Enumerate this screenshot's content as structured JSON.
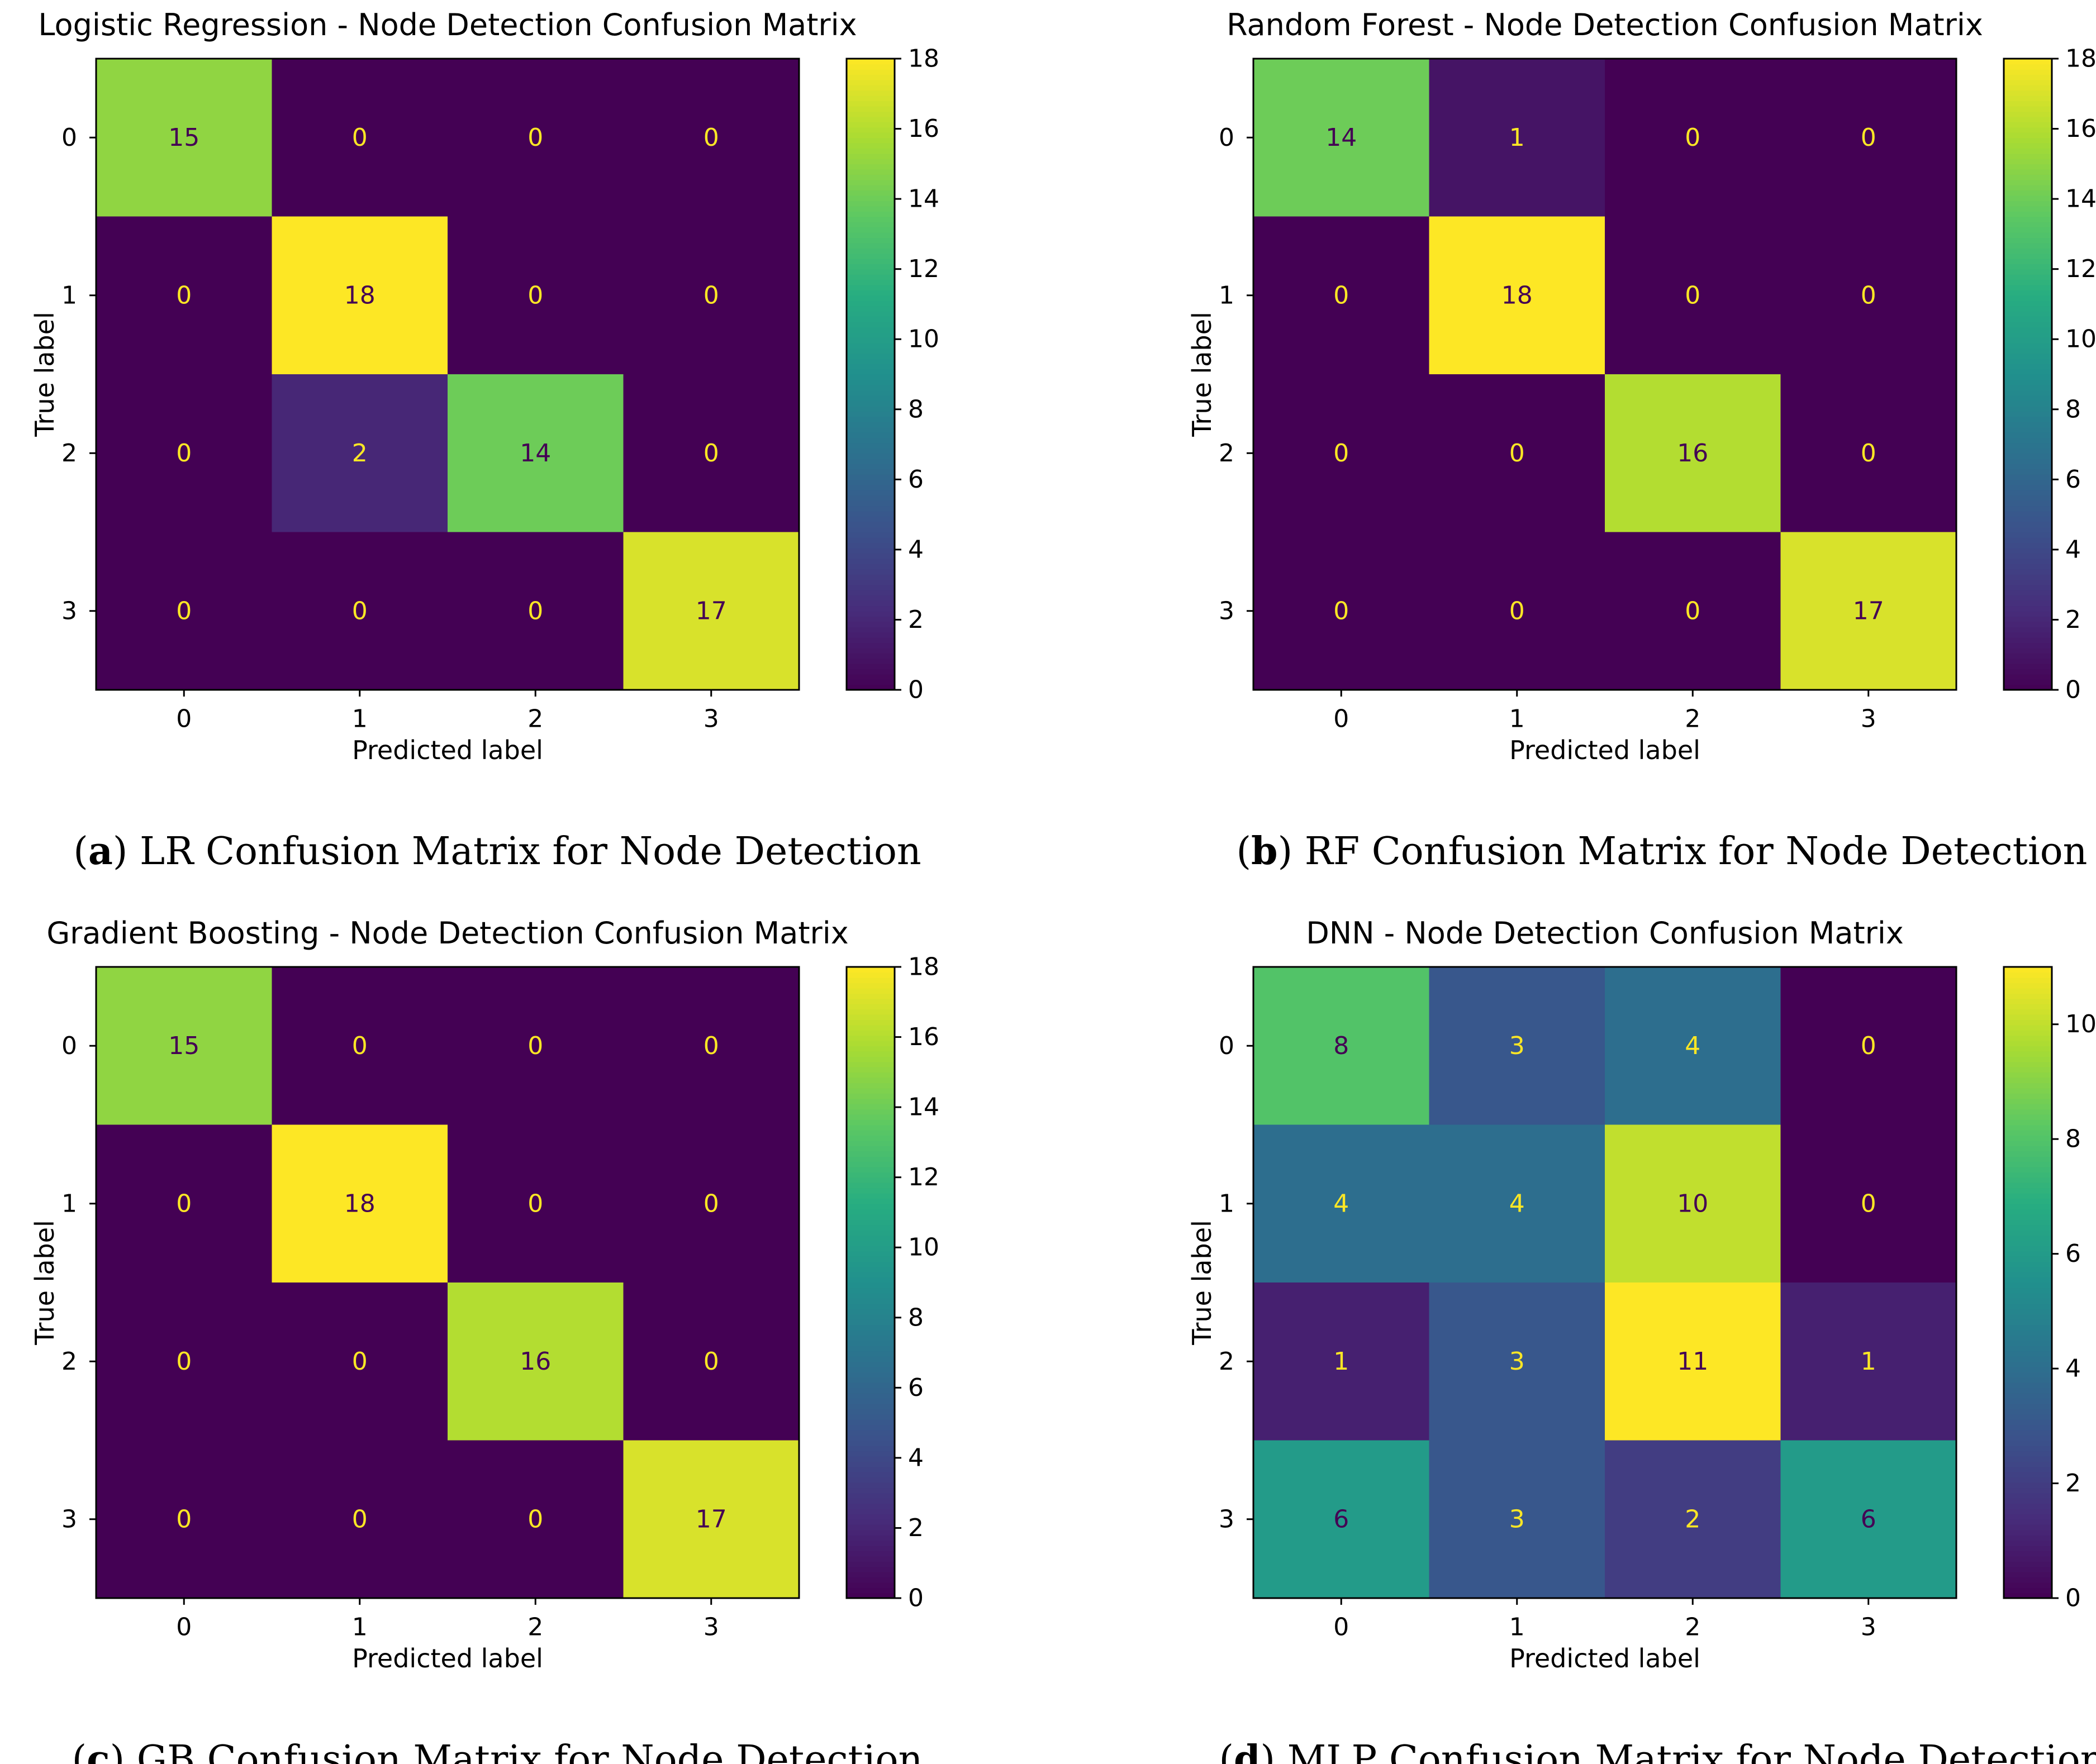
{
  "chart_data": [
    {
      "type": "heatmap",
      "title": "Logistic Regression - Node Detection Confusion Matrix",
      "xlabel": "Predicted label",
      "ylabel": "True label",
      "x_categories": [
        "0",
        "1",
        "2",
        "3"
      ],
      "y_categories": [
        "0",
        "1",
        "2",
        "3"
      ],
      "values": [
        [
          15,
          0,
          0,
          0
        ],
        [
          0,
          18,
          0,
          0
        ],
        [
          0,
          2,
          14,
          0
        ],
        [
          0,
          0,
          0,
          17
        ]
      ],
      "vmin": 0,
      "vmax": 18,
      "colorbar_ticks": [
        0,
        2,
        4,
        6,
        8,
        10,
        12,
        14,
        16,
        18
      ],
      "colormap": "viridis",
      "caption_letter": "a",
      "caption_text": "LR Confusion Matrix for Node Detection"
    },
    {
      "type": "heatmap",
      "title": "Random Forest - Node Detection Confusion Matrix",
      "xlabel": "Predicted label",
      "ylabel": "True label",
      "x_categories": [
        "0",
        "1",
        "2",
        "3"
      ],
      "y_categories": [
        "0",
        "1",
        "2",
        "3"
      ],
      "values": [
        [
          14,
          1,
          0,
          0
        ],
        [
          0,
          18,
          0,
          0
        ],
        [
          0,
          0,
          16,
          0
        ],
        [
          0,
          0,
          0,
          17
        ]
      ],
      "vmin": 0,
      "vmax": 18,
      "colorbar_ticks": [
        0,
        2,
        4,
        6,
        8,
        10,
        12,
        14,
        16,
        18
      ],
      "colormap": "viridis",
      "caption_letter": "b",
      "caption_text": "RF Confusion Matrix for Node Detection"
    },
    {
      "type": "heatmap",
      "title": "Gradient Boosting - Node Detection Confusion Matrix",
      "xlabel": "Predicted label",
      "ylabel": "True label",
      "x_categories": [
        "0",
        "1",
        "2",
        "3"
      ],
      "y_categories": [
        "0",
        "1",
        "2",
        "3"
      ],
      "values": [
        [
          15,
          0,
          0,
          0
        ],
        [
          0,
          18,
          0,
          0
        ],
        [
          0,
          0,
          16,
          0
        ],
        [
          0,
          0,
          0,
          17
        ]
      ],
      "vmin": 0,
      "vmax": 18,
      "colorbar_ticks": [
        0,
        2,
        4,
        6,
        8,
        10,
        12,
        14,
        16,
        18
      ],
      "colormap": "viridis",
      "caption_letter": "c",
      "caption_text": "GB Confusion Matrix for Node Detection"
    },
    {
      "type": "heatmap",
      "title": "DNN - Node Detection Confusion Matrix",
      "xlabel": "Predicted label",
      "ylabel": "True label",
      "x_categories": [
        "0",
        "1",
        "2",
        "3"
      ],
      "y_categories": [
        "0",
        "1",
        "2",
        "3"
      ],
      "values": [
        [
          8,
          3,
          4,
          0
        ],
        [
          4,
          4,
          10,
          0
        ],
        [
          1,
          3,
          11,
          1
        ],
        [
          6,
          3,
          2,
          6
        ]
      ],
      "vmin": 0,
      "vmax": 11,
      "colorbar_ticks": [
        0,
        2,
        4,
        6,
        8,
        10
      ],
      "colormap": "viridis",
      "caption_letter": "d",
      "caption_text": "MLP Confusion Matrix for Node Detection"
    }
  ]
}
